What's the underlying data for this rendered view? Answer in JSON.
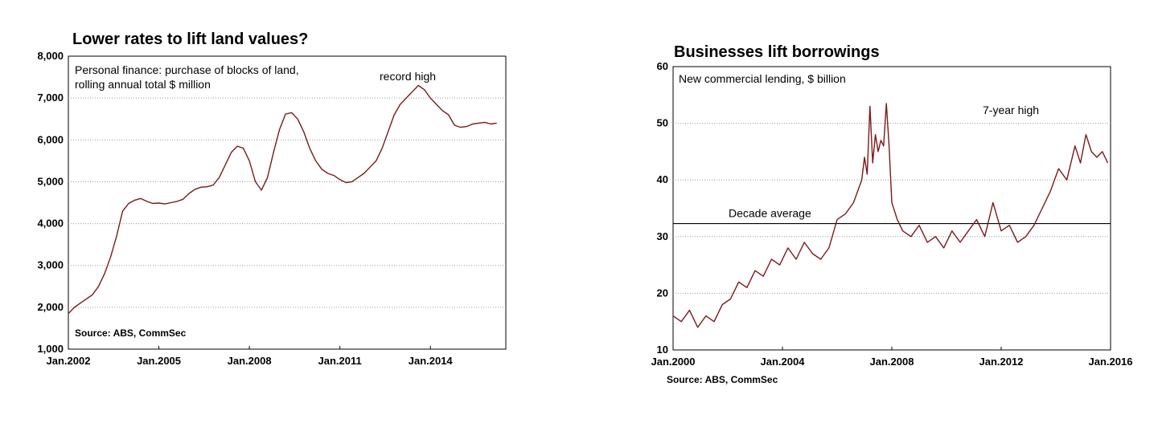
{
  "charts": [
    {
      "title": "Lower rates to lift land values?",
      "note_line1": "Personal finance: purchase of blocks of land,",
      "note_line2": "rolling annual total $ million",
      "annotation": "record high",
      "source": "Source: ABS, CommSec",
      "y_ticks": [
        "8,000",
        "7,000",
        "6,000",
        "5,000",
        "4,000",
        "3,000",
        "2,000",
        "1,000"
      ],
      "x_ticks": [
        "Jan.2002",
        "Jan.2005",
        "Jan.2008",
        "Jan.2011",
        "Jan.2014"
      ],
      "color": "#7a1a1a"
    },
    {
      "title": "Businesses lift borrowings",
      "note": "New commercial lending, $ billion",
      "annotation": "7-year high",
      "avg_label": "Decade average",
      "source": "Source: ABS, CommSec",
      "y_ticks": [
        "60",
        "50",
        "40",
        "30",
        "20",
        "10"
      ],
      "x_ticks": [
        "Jan.2000",
        "Jan.2004",
        "Jan.2008",
        "Jan.2012",
        "Jan.2016"
      ],
      "color": "#7a1a1a"
    }
  ],
  "chart_data": [
    {
      "type": "line",
      "title": "Lower rates to lift land values?",
      "ylabel": "Personal finance: purchase of blocks of land, rolling annual total $ million",
      "ylim": [
        1000,
        8000
      ],
      "xlim": [
        2002.0,
        2016.5
      ],
      "grid": true,
      "legend": "none",
      "series": [
        {
          "x": [
            2002.0,
            2002.2,
            2002.4,
            2002.6,
            2002.8,
            2003.0,
            2003.2,
            2003.4,
            2003.6,
            2003.8,
            2004.0,
            2004.2,
            2004.4,
            2004.6,
            2004.8,
            2005.0,
            2005.2,
            2005.4,
            2005.6,
            2005.8,
            2006.0,
            2006.2,
            2006.4,
            2006.6,
            2006.8,
            2007.0,
            2007.2,
            2007.4,
            2007.6,
            2007.8,
            2008.0,
            2008.2,
            2008.4,
            2008.6,
            2008.8,
            2009.0,
            2009.2,
            2009.4,
            2009.6,
            2009.8,
            2010.0,
            2010.2,
            2010.4,
            2010.6,
            2010.8,
            2011.0,
            2011.2,
            2011.4,
            2011.6,
            2011.8,
            2012.0,
            2012.2,
            2012.4,
            2012.6,
            2012.8,
            2013.0,
            2013.2,
            2013.4,
            2013.6,
            2013.8,
            2014.0,
            2014.2,
            2014.4,
            2014.6,
            2014.8,
            2015.0,
            2015.2,
            2015.4,
            2015.6,
            2015.8,
            2016.0,
            2016.2
          ],
          "y": [
            1850,
            2000,
            2100,
            2200,
            2300,
            2500,
            2800,
            3200,
            3700,
            4300,
            4480,
            4560,
            4600,
            4530,
            4480,
            4490,
            4470,
            4500,
            4530,
            4580,
            4720,
            4820,
            4870,
            4880,
            4920,
            5100,
            5400,
            5700,
            5850,
            5800,
            5500,
            5000,
            4800,
            5100,
            5700,
            6250,
            6620,
            6650,
            6500,
            6200,
            5800,
            5500,
            5300,
            5200,
            5150,
            5050,
            4980,
            5000,
            5100,
            5200,
            5350,
            5500,
            5800,
            6200,
            6600,
            6850,
            7000,
            7150,
            7300,
            7200,
            7000,
            6850,
            6700,
            6600,
            6350,
            6300,
            6320,
            6380,
            6400,
            6420,
            6380,
            6400
          ]
        }
      ]
    },
    {
      "type": "line",
      "title": "Businesses lift borrowings",
      "ylabel": "New commercial lending, $ billion",
      "ylim": [
        10,
        60
      ],
      "xlim": [
        2000.0,
        2016.0
      ],
      "grid": true,
      "legend": "none",
      "reference_line": {
        "label": "Decade average",
        "value": 32.3
      },
      "series": [
        {
          "x": [
            2000.0,
            2000.3,
            2000.6,
            2000.9,
            2001.2,
            2001.5,
            2001.8,
            2002.1,
            2002.4,
            2002.7,
            2003.0,
            2003.3,
            2003.6,
            2003.9,
            2004.2,
            2004.5,
            2004.8,
            2005.1,
            2005.4,
            2005.7,
            2006.0,
            2006.3,
            2006.6,
            2006.9,
            2007.0,
            2007.1,
            2007.2,
            2007.3,
            2007.4,
            2007.5,
            2007.6,
            2007.7,
            2007.8,
            2007.9,
            2008.0,
            2008.1,
            2008.2,
            2008.4,
            2008.7,
            2009.0,
            2009.3,
            2009.6,
            2009.9,
            2010.2,
            2010.5,
            2010.8,
            2011.1,
            2011.4,
            2011.7,
            2012.0,
            2012.3,
            2012.6,
            2012.9,
            2013.2,
            2013.5,
            2013.8,
            2014.1,
            2014.4,
            2014.7,
            2014.9,
            2015.1,
            2015.3,
            2015.5,
            2015.7,
            2015.9
          ],
          "y": [
            16.0,
            15.0,
            17.0,
            14.0,
            16.0,
            15.0,
            18.0,
            19.0,
            22.0,
            21.0,
            24.0,
            23.0,
            26.0,
            25.0,
            28.0,
            26.0,
            29.0,
            27.0,
            26.0,
            28.0,
            33.0,
            34.0,
            36.0,
            40.0,
            44.0,
            41.0,
            53.0,
            43.0,
            48.0,
            45.0,
            47.0,
            46.0,
            53.5,
            46.0,
            36.0,
            34.5,
            33.0,
            31.0,
            30.0,
            32.0,
            29.0,
            30.0,
            28.0,
            31.0,
            29.0,
            31.0,
            33.0,
            30.0,
            36.0,
            31.0,
            32.0,
            29.0,
            30.0,
            32.0,
            35.0,
            38.0,
            42.0,
            40.0,
            46.0,
            43.0,
            48.0,
            45.0,
            44.0,
            45.0,
            43.0
          ]
        }
      ]
    }
  ]
}
